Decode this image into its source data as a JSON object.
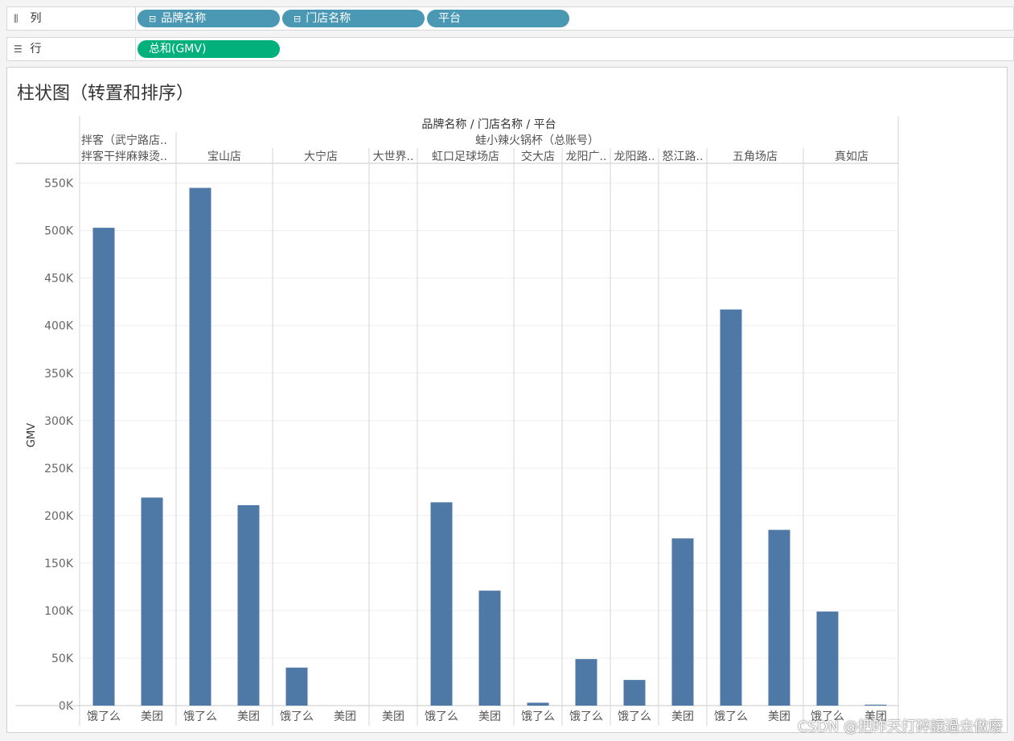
{
  "shelves": {
    "columns": {
      "label": "列",
      "icon": "columns-icon",
      "pills": [
        {
          "label": "品牌名称",
          "expanded": true
        },
        {
          "label": "门店名称",
          "expanded": true
        },
        {
          "label": "平台",
          "expanded": false
        }
      ]
    },
    "rows": {
      "label": "行",
      "icon": "rows-icon",
      "pills": [
        {
          "label": "总和(GMV)"
        }
      ]
    }
  },
  "colors": {
    "dimension_pill": "#4a98b4",
    "measure_pill": "#02b07c",
    "bar": "#4e79a7"
  },
  "watermark": "CSDN @把昨天打碎讓過去做廢",
  "chart_data": {
    "type": "bar",
    "title": "柱状图（转置和排序）",
    "header_title": "品牌名称 / 门店名称 / 平台",
    "ylabel": "GMV",
    "ylim": [
      0,
      570000
    ],
    "yticks": [
      0,
      50000,
      100000,
      150000,
      200000,
      250000,
      300000,
      350000,
      400000,
      450000,
      500000,
      550000
    ],
    "ytick_labels": [
      "0K",
      "50K",
      "100K",
      "150K",
      "200K",
      "250K",
      "300K",
      "350K",
      "400K",
      "450K",
      "500K",
      "550K"
    ],
    "brands": [
      {
        "name": "拌客（武宁路店..",
        "stores": [
          "拌客干拌麻辣烫.."
        ]
      },
      {
        "name": "蛙小辣火锅杯（总账号）",
        "stores": [
          "宝山店",
          "大宁店",
          "大世界..",
          "虹口足球场店",
          "交大店",
          "龙阳广..",
          "龙阳路..",
          "怒江路..",
          "五角场店",
          "真如店"
        ]
      }
    ],
    "categories": [
      "饿了么",
      "美团",
      "饿了么",
      "美团",
      "饿了么",
      "美团",
      "美团",
      "饿了么",
      "美团",
      "饿了么",
      "饿了么",
      "饿了么",
      "美团",
      "饿了么",
      "美团",
      "饿了么",
      "美团"
    ],
    "stores_per_category": [
      "拌客干拌麻辣烫..",
      "拌客干拌麻辣烫..",
      "宝山店",
      "宝山店",
      "大宁店",
      "大宁店",
      "大世界..",
      "虹口足球场店",
      "虹口足球场店",
      "交大店",
      "龙阳广..",
      "龙阳路..",
      "怒江路..",
      "五角场店",
      "五角场店",
      "真如店",
      "真如店"
    ],
    "values": [
      503000,
      219000,
      545000,
      211000,
      40000,
      0,
      0,
      214000,
      121000,
      3000,
      49000,
      27000,
      176000,
      417000,
      185000,
      99000,
      1000
    ],
    "grid": true,
    "legend": "none"
  }
}
